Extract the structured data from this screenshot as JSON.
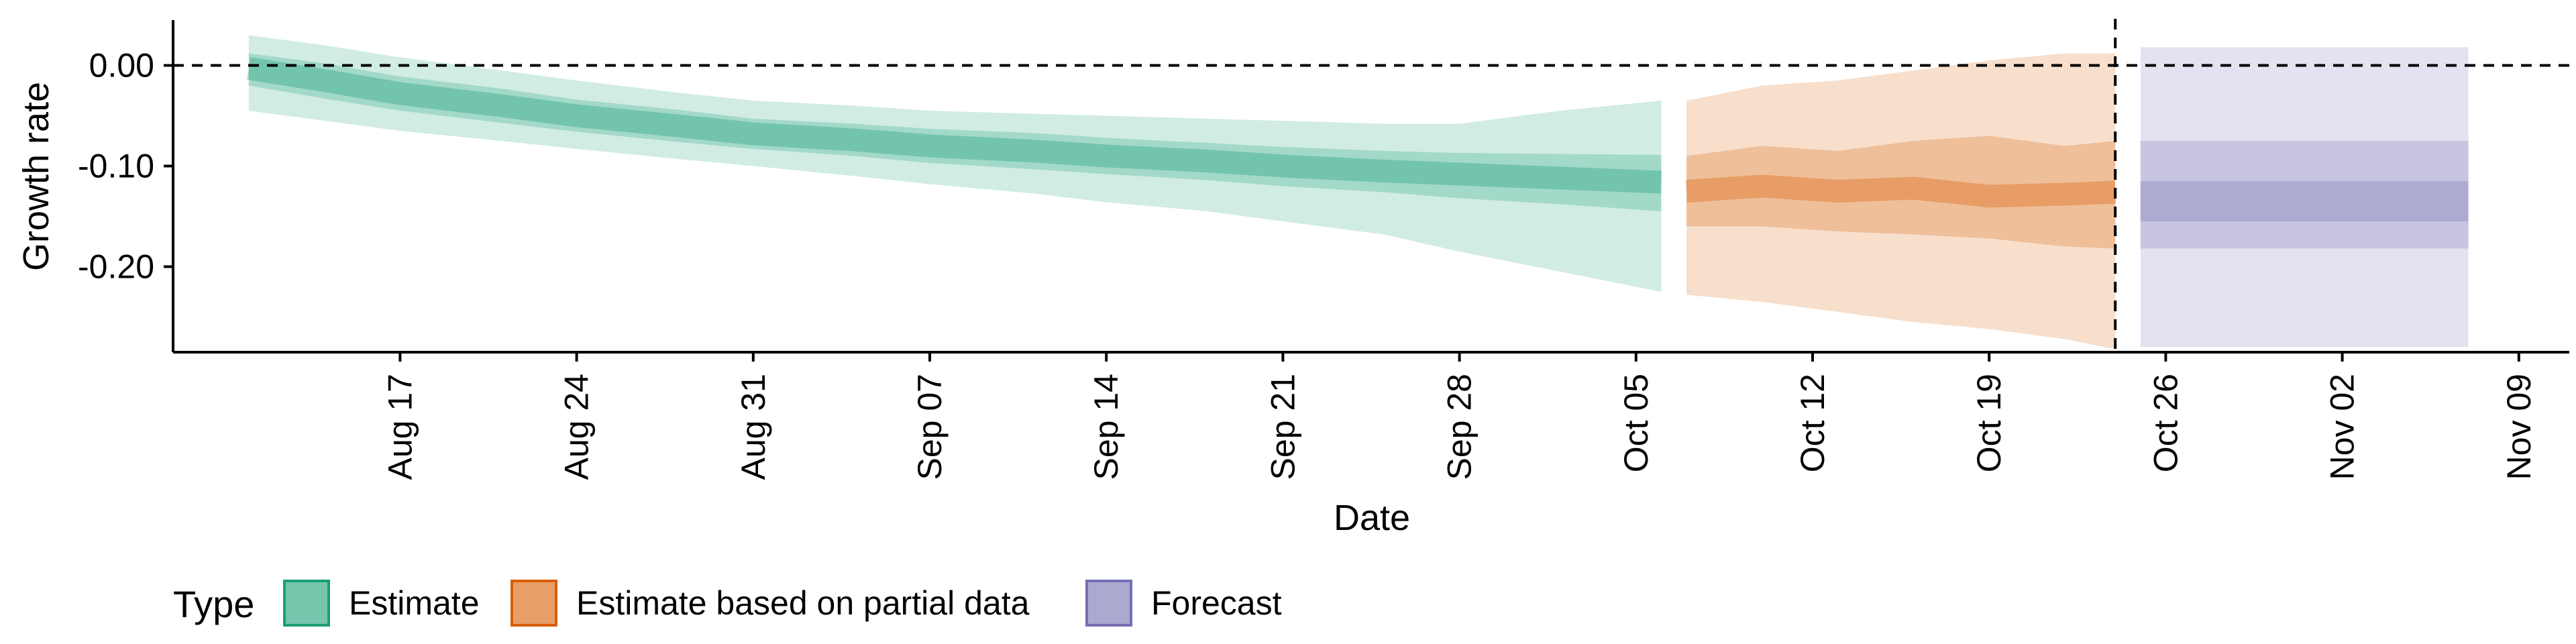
{
  "chart_data": {
    "type": "area",
    "xlabel": "Date",
    "ylabel": "Growth rate",
    "x_range": [
      "2020-08-08",
      "2020-11-11"
    ],
    "ylim": [
      -0.285,
      0.045
    ],
    "y_ticks": [
      0.0,
      -0.1,
      -0.2
    ],
    "y_tick_labels": [
      "0.00",
      "-0.10",
      "-0.20"
    ],
    "x_ticks": [
      "2020-08-17",
      "2020-08-24",
      "2020-08-31",
      "2020-09-07",
      "2020-09-14",
      "2020-09-21",
      "2020-09-28",
      "2020-10-05",
      "2020-10-12",
      "2020-10-19",
      "2020-10-26",
      "2020-11-02",
      "2020-11-09"
    ],
    "x_tick_labels": [
      "Aug 17",
      "Aug 24",
      "Aug 31",
      "Sep 07",
      "Sep 14",
      "Sep 21",
      "Sep 28",
      "Oct 05",
      "Oct 12",
      "Oct 19",
      "Oct 26",
      "Nov 02",
      "Nov 09"
    ],
    "reference_lines": {
      "horizontal_y": 0.0,
      "vertical_x": "2020-10-24",
      "style": "dashed"
    },
    "grid": false,
    "legend": {
      "title": "Type",
      "position": "bottom-left",
      "entries": [
        "Estimate",
        "Estimate based on partial data",
        "Forecast"
      ]
    },
    "colors": {
      "Estimate": "#1b9e77",
      "Estimate based on partial data": "#d95f02",
      "Forecast": "#7570b3"
    },
    "series": [
      {
        "name": "Estimate",
        "x": [
          "2020-08-11",
          "2020-08-14",
          "2020-08-17",
          "2020-08-21",
          "2020-08-24",
          "2020-08-28",
          "2020-08-31",
          "2020-09-04",
          "2020-09-07",
          "2020-09-11",
          "2020-09-14",
          "2020-09-18",
          "2020-09-21",
          "2020-09-25",
          "2020-09-28",
          "2020-10-02",
          "2020-10-06"
        ],
        "median": [
          -0.003,
          -0.015,
          -0.028,
          -0.04,
          -0.05,
          -0.06,
          -0.068,
          -0.074,
          -0.08,
          -0.085,
          -0.09,
          -0.095,
          -0.1,
          -0.105,
          -0.108,
          -0.112,
          -0.116
        ],
        "lower_90": [
          -0.045,
          -0.055,
          -0.065,
          -0.075,
          -0.083,
          -0.093,
          -0.1,
          -0.11,
          -0.118,
          -0.127,
          -0.136,
          -0.145,
          -0.155,
          -0.168,
          -0.185,
          -0.205,
          -0.225
        ],
        "upper_90": [
          0.03,
          0.02,
          0.008,
          -0.005,
          -0.015,
          -0.027,
          -0.035,
          -0.04,
          -0.045,
          -0.048,
          -0.05,
          -0.053,
          -0.055,
          -0.058,
          -0.058,
          -0.045,
          -0.035
        ],
        "lower_50": [
          -0.02,
          -0.033,
          -0.045,
          -0.057,
          -0.066,
          -0.076,
          -0.083,
          -0.09,
          -0.097,
          -0.103,
          -0.108,
          -0.114,
          -0.12,
          -0.126,
          -0.132,
          -0.138,
          -0.145
        ],
        "upper_50": [
          0.012,
          0.002,
          -0.011,
          -0.023,
          -0.034,
          -0.044,
          -0.053,
          -0.058,
          -0.063,
          -0.067,
          -0.072,
          -0.077,
          -0.081,
          -0.085,
          -0.087,
          -0.088,
          -0.089
        ]
      },
      {
        "name": "Estimate based on partial data",
        "x": [
          "2020-10-07",
          "2020-10-10",
          "2020-10-13",
          "2020-10-16",
          "2020-10-19",
          "2020-10-22",
          "2020-10-24"
        ],
        "median": [
          -0.125,
          -0.12,
          -0.125,
          -0.122,
          -0.13,
          -0.128,
          -0.126
        ],
        "lower_90": [
          -0.228,
          -0.235,
          -0.245,
          -0.255,
          -0.262,
          -0.272,
          -0.282
        ],
        "upper_90": [
          -0.035,
          -0.02,
          -0.015,
          -0.005,
          0.005,
          0.012,
          0.012
        ],
        "lower_50": [
          -0.16,
          -0.16,
          -0.165,
          -0.168,
          -0.172,
          -0.18,
          -0.182
        ],
        "upper_50": [
          -0.09,
          -0.08,
          -0.085,
          -0.075,
          -0.07,
          -0.08,
          -0.075
        ]
      },
      {
        "name": "Forecast",
        "x": [
          "2020-10-25",
          "2020-11-07"
        ],
        "median": [
          -0.135,
          -0.135
        ],
        "lower_90": [
          -0.28,
          -0.28
        ],
        "upper_90": [
          0.018,
          0.018
        ],
        "lower_50": [
          -0.182,
          -0.182
        ],
        "upper_50": [
          -0.075,
          -0.075
        ],
        "lower_20": [
          -0.155,
          -0.155
        ],
        "upper_20": [
          -0.115,
          -0.115
        ]
      }
    ]
  }
}
